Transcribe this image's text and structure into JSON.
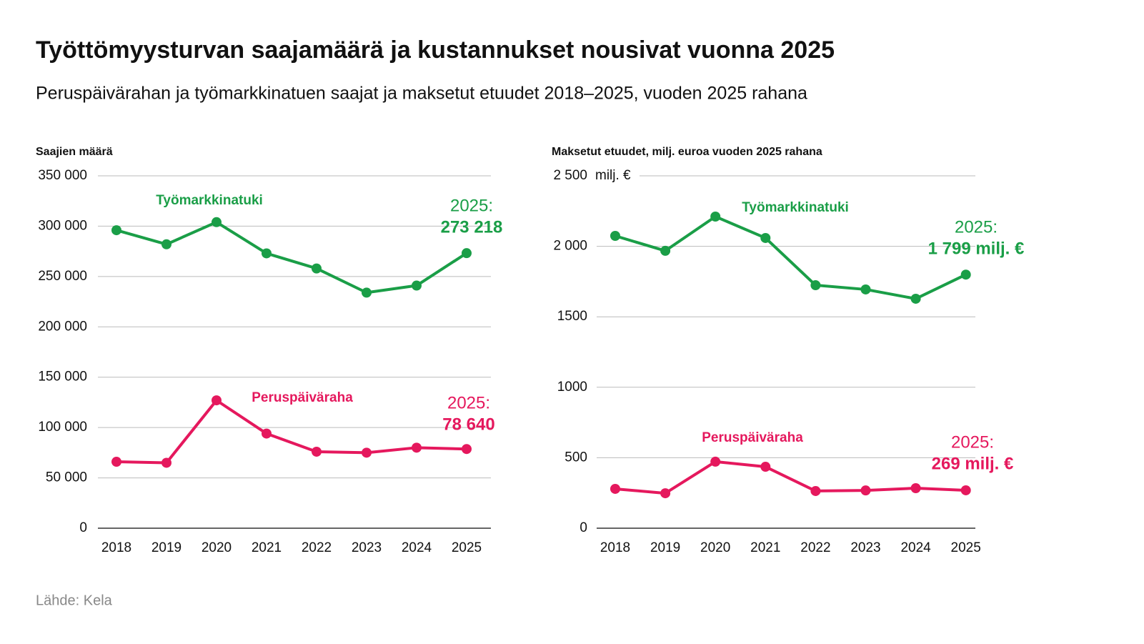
{
  "header": {
    "title": "Työttömyysturvan saajamäärä ja kustannukset nousivat vuonna 2025",
    "subtitle": "Peruspäivärahan ja työmarkkinatuen saajat ja maksetut etuudet 2018–2025, vuoden 2025 rahana"
  },
  "chart_data": [
    {
      "type": "line",
      "y_label": "Saajien määrä",
      "categories": [
        "2018",
        "2019",
        "2020",
        "2021",
        "2022",
        "2023",
        "2024",
        "2025"
      ],
      "ylim": [
        0,
        350000
      ],
      "yticks": [
        0,
        {
          "value": 50000,
          "label": "50 000"
        },
        {
          "value": 100000,
          "label": "100 000"
        },
        {
          "value": 150000,
          "label": "150 000"
        },
        {
          "value": 200000,
          "label": "200 000"
        },
        {
          "value": 250000,
          "label": "250 000"
        },
        {
          "value": 300000,
          "label": "300 000"
        },
        {
          "value": 350000,
          "label": "350 000"
        }
      ],
      "grid": true,
      "series": [
        {
          "name": "Työmarkkinatuki",
          "color": "#1a9e47",
          "values": [
            296000,
            282000,
            304000,
            273000,
            258000,
            234000,
            241000,
            273218
          ],
          "label_prefix": "2025:",
          "value_labels": [
            null,
            null,
            null,
            null,
            null,
            null,
            null,
            "273 218"
          ]
        },
        {
          "name": "Peruspäiväraha",
          "color": "#e5185d",
          "values": [
            66000,
            65000,
            127000,
            94000,
            76000,
            75000,
            80000,
            78640
          ],
          "label_prefix": "2025:",
          "value_labels": [
            null,
            null,
            null,
            null,
            null,
            null,
            null,
            "78 640"
          ]
        }
      ]
    },
    {
      "type": "line",
      "y_label": "Maksetut etuudet, milj. euroa vuoden 2025 rahana",
      "y_unit": "milj. €",
      "categories": [
        "2018",
        "2019",
        "2020",
        "2021",
        "2022",
        "2023",
        "2024",
        "2025"
      ],
      "ylim": [
        0,
        2500
      ],
      "yticks": [
        0,
        500,
        1000,
        1500,
        {
          "value": 2000,
          "label": "2 000"
        },
        {
          "value": 2500,
          "label": "2 500"
        }
      ],
      "grid": true,
      "series": [
        {
          "name": "Työmarkkinatuki",
          "color": "#1a9e47",
          "values": [
            2074,
            1968,
            2211,
            2059,
            1724,
            1694,
            1628,
            1799
          ],
          "label_prefix": "2025:",
          "value_labels": [
            null,
            null,
            null,
            null,
            null,
            null,
            null,
            "1 799 milj. €"
          ]
        },
        {
          "name": "Peruspäiväraha",
          "color": "#e5185d",
          "values": [
            279,
            248,
            472,
            436,
            264,
            268,
            284,
            269
          ],
          "label_prefix": "2025:",
          "value_labels": [
            null,
            null,
            null,
            null,
            null,
            null,
            null,
            "269 milj. €"
          ]
        }
      ]
    }
  ],
  "source": "Lähde: Kela"
}
